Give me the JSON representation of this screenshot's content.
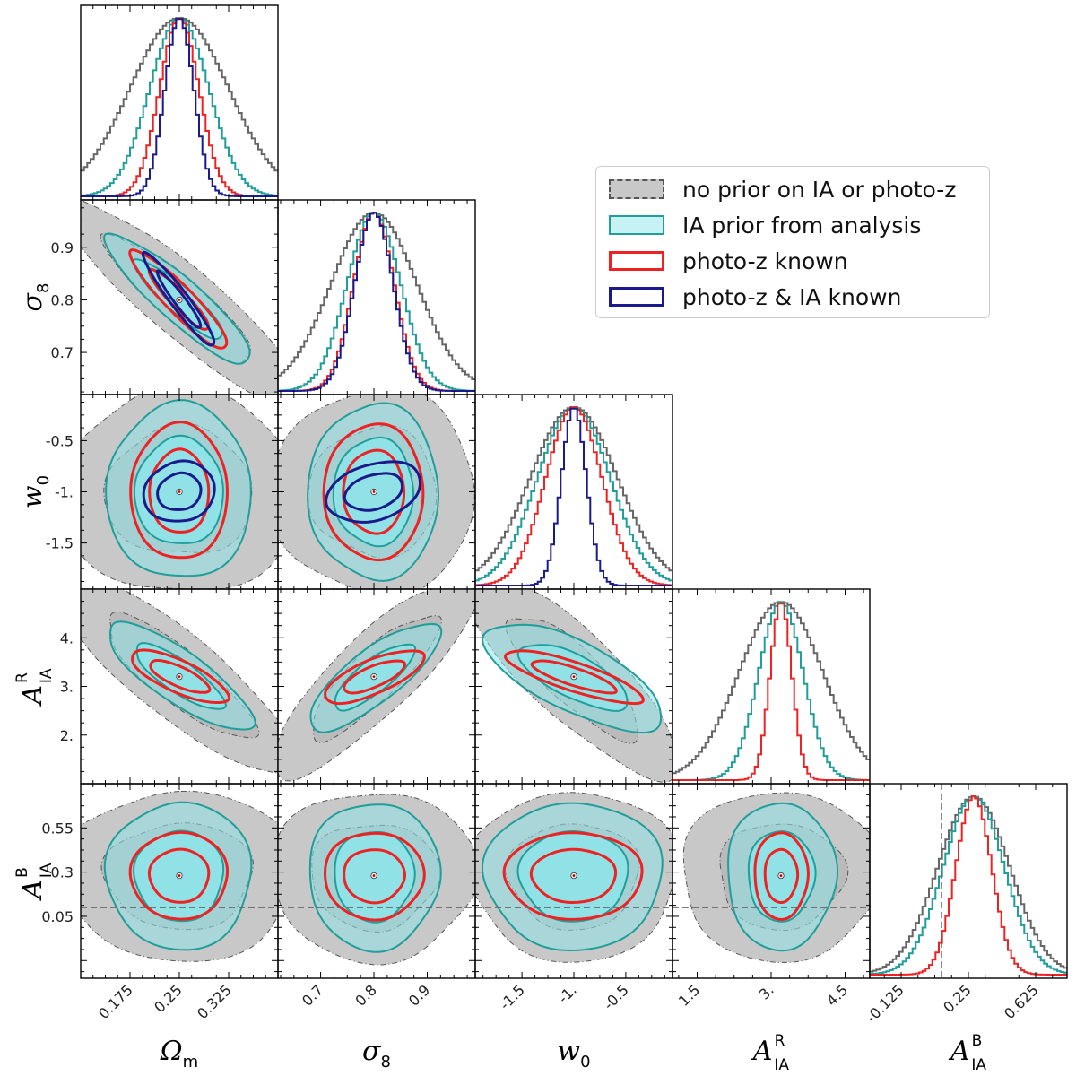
{
  "chart_data": {
    "type": "corner-plot",
    "title": "",
    "parameters": [
      {
        "id": "Om",
        "label": "Ω",
        "sub": "m",
        "range": [
          0.1,
          0.4
        ],
        "ticks": [
          0.175,
          0.25,
          0.325
        ],
        "tick_labels": [
          "0.175",
          "0.25",
          "0.325"
        ],
        "fiducial": 0.25
      },
      {
        "id": "s8",
        "label": "σ",
        "sub": "8",
        "range": [
          0.62,
          0.99
        ],
        "ticks": [
          0.7,
          0.8,
          0.9
        ],
        "tick_labels": [
          "0.7",
          "0.8",
          "0.9"
        ],
        "fiducial": 0.8
      },
      {
        "id": "w0",
        "label": "w",
        "sub": "0",
        "range": [
          -1.95,
          -0.05
        ],
        "ticks": [
          -1.5,
          -1.0,
          -0.5
        ],
        "tick_labels": [
          "-1.5",
          "-1.",
          "-0.5"
        ],
        "y_tick_labels": [
          "-1.5",
          "-1.",
          "-0.5"
        ],
        "fiducial": -1.0
      },
      {
        "id": "AR",
        "label": "A",
        "sub": "IA",
        "sup": "R",
        "range": [
          1.0,
          5.0
        ],
        "ticks": [
          1.5,
          3.0,
          4.5
        ],
        "tick_labels": [
          "1.5",
          "3.",
          "4.5"
        ],
        "y_ticks": [
          2.0,
          3.0,
          4.0
        ],
        "y_tick_labels": [
          "2.",
          "3.",
          "4."
        ],
        "fiducial": 3.2
      },
      {
        "id": "AB",
        "label": "A",
        "sub": "IA",
        "sup": "B",
        "range": [
          -0.3,
          0.8
        ],
        "ticks": [
          -0.125,
          0.25,
          0.625
        ],
        "tick_labels": [
          "-0.125",
          "0.25",
          "0.625"
        ],
        "y_ticks": [
          0.05,
          0.3,
          0.55
        ],
        "y_tick_labels": [
          "0.05",
          "0.3",
          "0.55"
        ],
        "fiducial": 0.28,
        "reference_line": 0.1
      }
    ],
    "series": [
      {
        "name": "no prior on IA or photo-z",
        "style": "filled-dashdot",
        "fill": "#c8c8c8",
        "edge": "#555555",
        "sigma": {
          "Om": 0.075,
          "s8": 0.08,
          "w0": 0.42,
          "AR": 0.85,
          "AB": 0.2
        },
        "corr": {
          "Om-s8": -0.9,
          "Om-w0": 0.0,
          "s8-w0": 0.0,
          "Om-AR": -0.85,
          "s8-AR": 0.85,
          "w0-AR": -0.82,
          "Om-AB": 0.0,
          "s8-AB": 0.0,
          "w0-AB": 0.0,
          "AR-AB": 0.0
        }
      },
      {
        "name": "IA prior from analysis",
        "style": "filled",
        "fill": "#8fe3e8",
        "edge": "#1f9e9a",
        "sigma": {
          "Om": 0.045,
          "s8": 0.05,
          "w0": 0.35,
          "AR": 0.45,
          "AB": 0.17
        },
        "corr": {
          "Om-s8": -0.9,
          "Om-w0": 0.0,
          "s8-w0": 0.0,
          "Om-AR": -0.82,
          "s8-AR": 0.8,
          "w0-AR": -0.7,
          "Om-AB": 0.0,
          "s8-AB": 0.0,
          "w0-AB": 0.0,
          "AR-AB": 0.0
        }
      },
      {
        "name": "photo-z known",
        "style": "line",
        "edge": "#ee2222",
        "sigma": {
          "Om": 0.03,
          "s8": 0.038,
          "w0": 0.27,
          "AR": 0.22,
          "AB": 0.1
        },
        "corr": {
          "Om-s8": -0.92,
          "Om-w0": 0.0,
          "s8-w0": 0.0,
          "Om-AR": -0.75,
          "s8-AR": 0.72,
          "w0-AR": -0.82,
          "Om-AB": 0.0,
          "s8-AB": 0.0,
          "w0-AB": 0.0,
          "AR-AB": 0.0
        }
      },
      {
        "name": "photo-z & IA known",
        "style": "line",
        "edge": "#1a1a8c",
        "sigma": {
          "Om": 0.022,
          "s8": 0.036,
          "w0": 0.12
        },
        "corr": {
          "Om-s8": -0.95,
          "Om-w0": 0.1,
          "s8-w0": 0.3
        }
      }
    ],
    "legend": {
      "position": "upper-right of grid"
    }
  }
}
